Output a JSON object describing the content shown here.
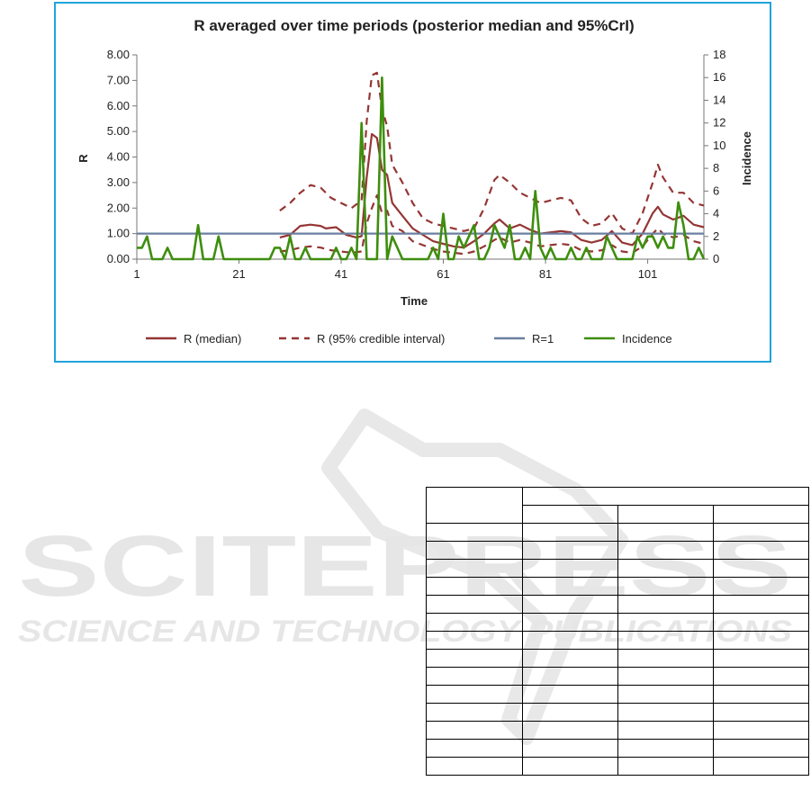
{
  "chart_data": {
    "type": "line",
    "title": "R averaged over time periods (posterior median and 95%CrI)",
    "xlabel": "Time",
    "ylabel": "R",
    "y2label": "Incidence",
    "xlim": [
      1,
      110
    ],
    "ylim": [
      0,
      8
    ],
    "y2lim": [
      0,
      18
    ],
    "xticks": [
      1,
      21,
      41,
      61,
      81,
      101
    ],
    "yticks": [
      "0.00",
      "1.00",
      "2.00",
      "3.00",
      "4.00",
      "5.00",
      "6.00",
      "7.00",
      "8.00"
    ],
    "y2ticks": [
      "0",
      "2",
      "4",
      "6",
      "8",
      "10",
      "12",
      "14",
      "16",
      "18"
    ],
    "legend_position": "bottom",
    "series": [
      {
        "name": "R (median)",
        "color": "#943634",
        "style": "solid",
        "axis": "left",
        "points": [
          [
            29,
            0.85
          ],
          [
            31,
            0.95
          ],
          [
            33,
            1.3
          ],
          [
            35,
            1.35
          ],
          [
            37,
            1.3
          ],
          [
            38,
            1.2
          ],
          [
            40,
            1.25
          ],
          [
            42,
            0.95
          ],
          [
            44,
            0.85
          ],
          [
            45,
            0.9
          ],
          [
            46,
            3.2
          ],
          [
            47,
            4.9
          ],
          [
            48,
            4.75
          ],
          [
            49,
            3.5
          ],
          [
            50,
            3.3
          ],
          [
            51,
            2.2
          ],
          [
            53,
            1.7
          ],
          [
            55,
            1.2
          ],
          [
            57,
            0.95
          ],
          [
            59,
            0.7
          ],
          [
            61,
            0.6
          ],
          [
            63,
            0.5
          ],
          [
            65,
            0.45
          ],
          [
            67,
            0.7
          ],
          [
            69,
            1.0
          ],
          [
            71,
            1.4
          ],
          [
            72,
            1.55
          ],
          [
            74,
            1.2
          ],
          [
            76,
            1.35
          ],
          [
            78,
            1.15
          ],
          [
            80,
            1.0
          ],
          [
            82,
            1.05
          ],
          [
            84,
            1.1
          ],
          [
            86,
            1.05
          ],
          [
            88,
            0.75
          ],
          [
            90,
            0.65
          ],
          [
            92,
            0.75
          ],
          [
            94,
            1.1
          ],
          [
            96,
            0.65
          ],
          [
            98,
            0.55
          ],
          [
            100,
            1.0
          ],
          [
            102,
            1.8
          ],
          [
            103,
            2.05
          ],
          [
            104,
            1.75
          ],
          [
            106,
            1.55
          ],
          [
            108,
            1.7
          ],
          [
            110,
            1.35
          ],
          [
            112,
            1.25
          ]
        ]
      },
      {
        "name": "R (95% credible interval)",
        "color": "#943634",
        "style": "dashed",
        "axis": "left",
        "points": [
          [
            29,
            1.9
          ],
          [
            31,
            2.2
          ],
          [
            33,
            2.6
          ],
          [
            35,
            2.9
          ],
          [
            37,
            2.8
          ],
          [
            39,
            2.4
          ],
          [
            41,
            2.2
          ],
          [
            43,
            2.0
          ],
          [
            45,
            2.3
          ],
          [
            46,
            5.4
          ],
          [
            47,
            7.2
          ],
          [
            48,
            7.3
          ],
          [
            49,
            5.9
          ],
          [
            50,
            5.2
          ],
          [
            51,
            3.7
          ],
          [
            53,
            3.0
          ],
          [
            55,
            2.2
          ],
          [
            57,
            1.6
          ],
          [
            59,
            1.4
          ],
          [
            61,
            1.3
          ],
          [
            63,
            1.2
          ],
          [
            65,
            1.1
          ],
          [
            67,
            1.2
          ],
          [
            69,
            2.0
          ],
          [
            71,
            3.1
          ],
          [
            72,
            3.3
          ],
          [
            74,
            3.0
          ],
          [
            76,
            2.6
          ],
          [
            78,
            2.4
          ],
          [
            80,
            2.2
          ],
          [
            82,
            2.3
          ],
          [
            84,
            2.4
          ],
          [
            86,
            2.3
          ],
          [
            88,
            1.6
          ],
          [
            90,
            1.3
          ],
          [
            92,
            1.4
          ],
          [
            94,
            1.8
          ],
          [
            96,
            1.2
          ],
          [
            98,
            1.0
          ],
          [
            100,
            1.8
          ],
          [
            102,
            3.0
          ],
          [
            103,
            3.7
          ],
          [
            104,
            3.2
          ],
          [
            106,
            2.6
          ],
          [
            108,
            2.6
          ],
          [
            110,
            2.2
          ],
          [
            112,
            2.1
          ]
        ]
      },
      {
        "name": "",
        "color": "#943634",
        "style": "dashed",
        "axis": "left",
        "points": [
          [
            29,
            0.3
          ],
          [
            31,
            0.35
          ],
          [
            33,
            0.45
          ],
          [
            35,
            0.5
          ],
          [
            37,
            0.45
          ],
          [
            39,
            0.35
          ],
          [
            41,
            0.3
          ],
          [
            43,
            0.25
          ],
          [
            45,
            0.3
          ],
          [
            46,
            1.4
          ],
          [
            47,
            2.0
          ],
          [
            48,
            2.5
          ],
          [
            49,
            1.8
          ],
          [
            50,
            1.9
          ],
          [
            51,
            1.3
          ],
          [
            53,
            1.1
          ],
          [
            55,
            0.7
          ],
          [
            57,
            0.55
          ],
          [
            59,
            0.4
          ],
          [
            61,
            0.3
          ],
          [
            63,
            0.25
          ],
          [
            65,
            0.2
          ],
          [
            67,
            0.3
          ],
          [
            69,
            0.5
          ],
          [
            71,
            0.75
          ],
          [
            72,
            0.85
          ],
          [
            74,
            0.65
          ],
          [
            76,
            0.75
          ],
          [
            78,
            0.65
          ],
          [
            80,
            0.5
          ],
          [
            82,
            0.55
          ],
          [
            84,
            0.6
          ],
          [
            86,
            0.55
          ],
          [
            88,
            0.35
          ],
          [
            90,
            0.3
          ],
          [
            92,
            0.35
          ],
          [
            94,
            0.55
          ],
          [
            96,
            0.3
          ],
          [
            98,
            0.25
          ],
          [
            100,
            0.5
          ],
          [
            102,
            1.0
          ],
          [
            103,
            1.2
          ],
          [
            104,
            1.0
          ],
          [
            106,
            0.85
          ],
          [
            108,
            0.95
          ],
          [
            110,
            0.7
          ],
          [
            112,
            0.6
          ]
        ]
      },
      {
        "name": "R=1",
        "color": "#6b7fa0",
        "style": "solid",
        "axis": "left",
        "points": [
          [
            1,
            1.0
          ],
          [
            112,
            1.0
          ]
        ]
      },
      {
        "name": "Incidence",
        "color": "#3e8e0e",
        "style": "solid",
        "axis": "right",
        "x": [
          1,
          2,
          3,
          4,
          5,
          6,
          7,
          8,
          9,
          10,
          11,
          12,
          13,
          14,
          15,
          16,
          17,
          18,
          19,
          20,
          21,
          22,
          23,
          24,
          25,
          26,
          27,
          28,
          29,
          30,
          31,
          32,
          33,
          34,
          35,
          36,
          37,
          38,
          39,
          40,
          41,
          42,
          43,
          44,
          45,
          46,
          47,
          48,
          49,
          50,
          51,
          52,
          53,
          54,
          55,
          56,
          57,
          58,
          59,
          60,
          61,
          62,
          63,
          64,
          65,
          66,
          67,
          68,
          69,
          70,
          71,
          72,
          73,
          74,
          75,
          76,
          77,
          78,
          79,
          80,
          81,
          82,
          83,
          84,
          85,
          86,
          87,
          88,
          89,
          90,
          91,
          92,
          93,
          94,
          95,
          96,
          97,
          98,
          99,
          100,
          101,
          102,
          103,
          104,
          105,
          106,
          107,
          108,
          109,
          110,
          111,
          112
        ],
        "values": [
          1,
          1,
          2,
          0,
          0,
          0,
          1,
          0,
          0,
          0,
          0,
          0,
          3,
          0,
          0,
          0,
          2,
          0,
          0,
          0,
          0,
          0,
          0,
          0,
          0,
          0,
          0,
          1,
          1,
          0,
          2,
          0,
          0,
          1,
          0,
          0,
          0,
          0,
          0,
          1,
          0,
          0,
          1,
          0,
          12,
          0,
          0,
          0,
          16,
          0,
          2,
          1,
          0,
          0,
          0,
          0,
          0,
          0,
          1,
          0,
          4,
          0,
          0,
          2,
          1,
          2,
          3,
          0,
          0,
          1,
          3,
          2,
          1,
          3,
          0,
          0,
          1,
          0,
          6,
          1,
          0,
          1,
          0,
          0,
          0,
          1,
          0,
          0,
          1,
          0,
          0,
          0,
          2,
          1,
          0,
          0,
          0,
          0,
          2,
          1,
          2,
          2,
          1,
          2,
          1,
          1,
          5,
          3,
          0,
          0,
          1,
          0
        ]
      }
    ]
  },
  "legend": [
    {
      "label": "R (median)",
      "color": "#943634",
      "style": "solid"
    },
    {
      "label": "R (95% credible interval)",
      "color": "#943634",
      "style": "dashed"
    },
    {
      "label": "R=1",
      "color": "#6b7fa0",
      "style": "solid"
    },
    {
      "label": "Incidence",
      "color": "#3e8e0e",
      "style": "solid"
    }
  ],
  "watermark": {
    "line1": "SCITEPRESS",
    "line2": "SCIENCE AND TECHNOLOGY PUBLICATIONS"
  },
  "table": {
    "rows": 16,
    "cols": 4
  }
}
